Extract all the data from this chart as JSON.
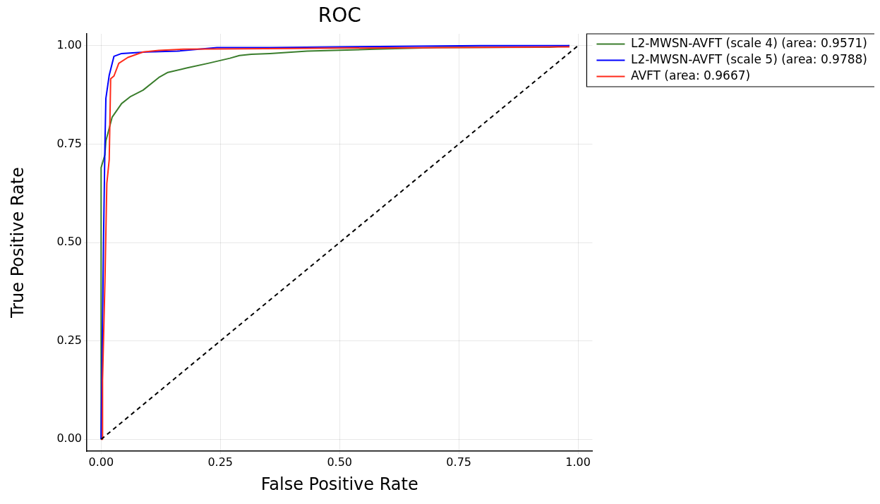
{
  "chart_data": {
    "type": "line",
    "title": "ROC",
    "xlabel": "False Positive Rate",
    "ylabel": "True Positive Rate",
    "xlim": [
      -0.03,
      1.03
    ],
    "ylim": [
      -0.03,
      1.03
    ],
    "xticks": [
      {
        "value": 0,
        "label": "0.00"
      },
      {
        "value": 0.25,
        "label": "0.25"
      },
      {
        "value": 0.5,
        "label": "0.50"
      },
      {
        "value": 0.75,
        "label": "0.75"
      },
      {
        "value": 1,
        "label": "1.00"
      }
    ],
    "yticks": [
      {
        "value": 0,
        "label": "0.00"
      },
      {
        "value": 0.25,
        "label": "0.25"
      },
      {
        "value": 0.5,
        "label": "0.50"
      },
      {
        "value": 0.75,
        "label": "0.75"
      },
      {
        "value": 1,
        "label": "1.00"
      }
    ],
    "grid": true,
    "legend": "top right",
    "marker": "none",
    "series": [
      {
        "name": "L2-MWSN-AVFT (scale 4) (area: 0.9571)",
        "color": "#3a7d2c",
        "type": "line",
        "line_style": "solid",
        "x": [
          0,
          0,
          0.008,
          0.01,
          0.023,
          0.043,
          0.062,
          0.088,
          0.121,
          0.14,
          0.179,
          0.224,
          0.27,
          0.29,
          0.315,
          0.354,
          0.432,
          0.574,
          0.704,
          0.94,
          0.982
        ],
        "values": [
          0,
          0.69,
          0.723,
          0.758,
          0.818,
          0.853,
          0.871,
          0.887,
          0.919,
          0.932,
          0.943,
          0.955,
          0.968,
          0.975,
          0.978,
          0.98,
          0.986,
          0.991,
          0.995,
          0.996,
          1.0
        ]
      },
      {
        "name": "L2-MWSN-AVFT (scale 5) (area: 0.9788)",
        "color": "#0000ff",
        "type": "line",
        "line_style": "solid",
        "x": [
          0,
          0.003,
          0.005,
          0.008,
          0.01,
          0.017,
          0.027,
          0.043,
          0.095,
          0.16,
          0.243,
          0.354,
          0.796,
          0.982
        ],
        "values": [
          0,
          0.3,
          0.5,
          0.746,
          0.866,
          0.925,
          0.973,
          0.98,
          0.984,
          0.986,
          0.995,
          0.995,
          1.0,
          1.0
        ]
      },
      {
        "name": "AVFT (area: 0.9667)",
        "color": "#ff2a1a",
        "type": "line",
        "line_style": "solid",
        "x": [
          0,
          0.003,
          0.003,
          0.008,
          0.012,
          0.017,
          0.02,
          0.027,
          0.037,
          0.056,
          0.088,
          0.121,
          0.173,
          0.4,
          0.982
        ],
        "values": [
          0,
          0.0,
          0.15,
          0.4,
          0.65,
          0.71,
          0.916,
          0.923,
          0.955,
          0.97,
          0.984,
          0.988,
          0.991,
          0.993,
          0.997
        ]
      },
      {
        "color": "#000000",
        "type": "line",
        "line_style": "dashed",
        "x": [
          0,
          1
        ],
        "values": [
          0,
          1
        ]
      }
    ]
  }
}
